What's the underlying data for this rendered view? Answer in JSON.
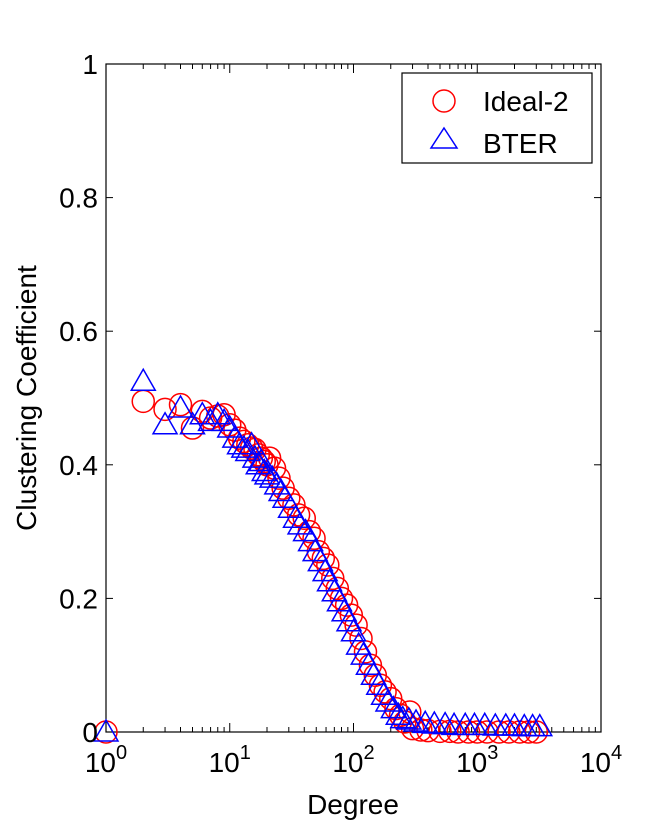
{
  "chart_data": {
    "type": "scatter",
    "xlabel": "Degree",
    "ylabel": "Clustering Coefficient",
    "xscale": "log",
    "xlim": [
      1,
      10000
    ],
    "ylim": [
      0,
      1
    ],
    "x_ticks": [
      {
        "base": "10",
        "exp": "0",
        "value": 1
      },
      {
        "base": "10",
        "exp": "1",
        "value": 10
      },
      {
        "base": "10",
        "exp": "2",
        "value": 100
      },
      {
        "base": "10",
        "exp": "3",
        "value": 1000
      },
      {
        "base": "10",
        "exp": "4",
        "value": 10000
      }
    ],
    "y_ticks": [
      "0",
      "0.2",
      "0.4",
      "0.6",
      "0.8",
      "1"
    ],
    "grid": false,
    "legend_position": "top-right",
    "series": [
      {
        "name": "Ideal-2",
        "marker": "circle",
        "color": "#ff0000",
        "points": [
          [
            1,
            0.0
          ],
          [
            2,
            0.495
          ],
          [
            3,
            0.483
          ],
          [
            4,
            0.49
          ],
          [
            5,
            0.455
          ],
          [
            6,
            0.48
          ],
          [
            7,
            0.47
          ],
          [
            8,
            0.473
          ],
          [
            9,
            0.475
          ],
          [
            10,
            0.46
          ],
          [
            11,
            0.452
          ],
          [
            12,
            0.44
          ],
          [
            13,
            0.435
          ],
          [
            14,
            0.43
          ],
          [
            15,
            0.425
          ],
          [
            16,
            0.423
          ],
          [
            17,
            0.415
          ],
          [
            18,
            0.41
          ],
          [
            19,
            0.405
          ],
          [
            20,
            0.4
          ],
          [
            21,
            0.41
          ],
          [
            23,
            0.395
          ],
          [
            25,
            0.38
          ],
          [
            27,
            0.365
          ],
          [
            30,
            0.35
          ],
          [
            33,
            0.34
          ],
          [
            36,
            0.325
          ],
          [
            40,
            0.32
          ],
          [
            44,
            0.3
          ],
          [
            48,
            0.29
          ],
          [
            52,
            0.27
          ],
          [
            57,
            0.26
          ],
          [
            62,
            0.25
          ],
          [
            68,
            0.23
          ],
          [
            74,
            0.215
          ],
          [
            80,
            0.2
          ],
          [
            88,
            0.19
          ],
          [
            96,
            0.175
          ],
          [
            105,
            0.16
          ],
          [
            115,
            0.14
          ],
          [
            125,
            0.12
          ],
          [
            137,
            0.1
          ],
          [
            150,
            0.085
          ],
          [
            165,
            0.07
          ],
          [
            180,
            0.06
          ],
          [
            200,
            0.05
          ],
          [
            220,
            0.035
          ],
          [
            240,
            0.025
          ],
          [
            260,
            0.015
          ],
          [
            285,
            0.03
          ],
          [
            300,
            0.005
          ],
          [
            350,
            0.003
          ],
          [
            400,
            0.002
          ],
          [
            500,
            0.001
          ],
          [
            600,
            0.001
          ],
          [
            700,
            0.0
          ],
          [
            850,
            0.0
          ],
          [
            1000,
            0.0
          ],
          [
            1200,
            0.0
          ],
          [
            1500,
            0.0
          ],
          [
            1800,
            0.0
          ],
          [
            2200,
            0.0
          ],
          [
            2600,
            0.0
          ],
          [
            3000,
            0.0
          ]
        ]
      },
      {
        "name": "BTER",
        "marker": "triangle",
        "color": "#0000ff",
        "points": [
          [
            1,
            0.0
          ],
          [
            2,
            0.525
          ],
          [
            3,
            0.46
          ],
          [
            4,
            0.485
          ],
          [
            5,
            0.46
          ],
          [
            6,
            0.475
          ],
          [
            7,
            0.465
          ],
          [
            8,
            0.475
          ],
          [
            9,
            0.465
          ],
          [
            10,
            0.455
          ],
          [
            11,
            0.44
          ],
          [
            12,
            0.43
          ],
          [
            13,
            0.425
          ],
          [
            14,
            0.42
          ],
          [
            15,
            0.43
          ],
          [
            16,
            0.41
          ],
          [
            17,
            0.4
          ],
          [
            18,
            0.405
          ],
          [
            19,
            0.39
          ],
          [
            20,
            0.385
          ],
          [
            22,
            0.38
          ],
          [
            24,
            0.37
          ],
          [
            26,
            0.36
          ],
          [
            28,
            0.35
          ],
          [
            31,
            0.335
          ],
          [
            34,
            0.32
          ],
          [
            37,
            0.31
          ],
          [
            41,
            0.3
          ],
          [
            45,
            0.285
          ],
          [
            49,
            0.27
          ],
          [
            54,
            0.255
          ],
          [
            59,
            0.24
          ],
          [
            64,
            0.225
          ],
          [
            70,
            0.21
          ],
          [
            77,
            0.195
          ],
          [
            84,
            0.18
          ],
          [
            92,
            0.165
          ],
          [
            100,
            0.15
          ],
          [
            110,
            0.13
          ],
          [
            120,
            0.115
          ],
          [
            132,
            0.1
          ],
          [
            145,
            0.085
          ],
          [
            160,
            0.07
          ],
          [
            175,
            0.055
          ],
          [
            190,
            0.045
          ],
          [
            210,
            0.035
          ],
          [
            230,
            0.025
          ],
          [
            250,
            0.02
          ],
          [
            280,
            0.018
          ],
          [
            320,
            0.015
          ],
          [
            380,
            0.013
          ],
          [
            450,
            0.012
          ],
          [
            550,
            0.011
          ],
          [
            650,
            0.01
          ],
          [
            800,
            0.01
          ],
          [
            950,
            0.01
          ],
          [
            1150,
            0.01
          ],
          [
            1400,
            0.009
          ],
          [
            1700,
            0.009
          ],
          [
            2000,
            0.009
          ],
          [
            2400,
            0.008
          ],
          [
            2800,
            0.008
          ],
          [
            3200,
            0.008
          ]
        ]
      }
    ]
  }
}
